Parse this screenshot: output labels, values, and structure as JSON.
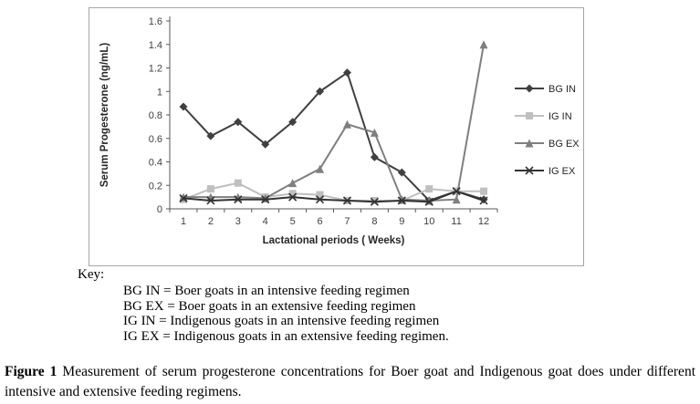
{
  "chart_data": {
    "type": "line",
    "title": "",
    "xlabel": "Lactational periods ( Weeks)",
    "ylabel": "Serum Progesterone (ng/mL)",
    "x": [
      1,
      2,
      3,
      4,
      5,
      6,
      7,
      8,
      9,
      10,
      11,
      12
    ],
    "ylim": [
      0,
      1.6
    ],
    "ytick_step": 0.2,
    "grid": false,
    "legend_position": "right",
    "series": [
      {
        "name": "BG IN",
        "marker": "diamond",
        "color": "#404040",
        "values": [
          0.87,
          0.62,
          0.74,
          0.55,
          0.74,
          1.0,
          1.16,
          0.44,
          0.31,
          0.07,
          0.15,
          0.08
        ]
      },
      {
        "name": "IG IN",
        "marker": "square",
        "color": "#bfbfbf",
        "values": [
          0.08,
          0.17,
          0.22,
          0.1,
          0.13,
          0.12,
          0.07,
          0.07,
          0.07,
          0.17,
          0.15,
          0.15
        ]
      },
      {
        "name": "BG EX",
        "marker": "triangle",
        "color": "#7f7f7f",
        "values": [
          0.1,
          0.1,
          0.1,
          0.09,
          0.22,
          0.34,
          0.72,
          0.65,
          0.08,
          0.07,
          0.08,
          1.4
        ]
      },
      {
        "name": "IG EX",
        "marker": "x",
        "color": "#333333",
        "values": [
          0.09,
          0.07,
          0.08,
          0.08,
          0.1,
          0.08,
          0.07,
          0.06,
          0.07,
          0.06,
          0.15,
          0.07
        ]
      }
    ]
  },
  "key": {
    "label": "Key:",
    "items": [
      "BG IN = Boer goats in an intensive feeding regimen",
      "BG EX = Boer goats in an extensive feeding regimen",
      "IG IN = Indigenous goats in an intensive feeding regimen",
      "IG EX = Indigenous goats in an extensive feeding regimen."
    ]
  },
  "caption": {
    "label": "Figure 1",
    "text": " Measurement of serum progesterone concentrations for Boer goat and Indigenous goat does under different intensive and extensive feeding regimens."
  }
}
